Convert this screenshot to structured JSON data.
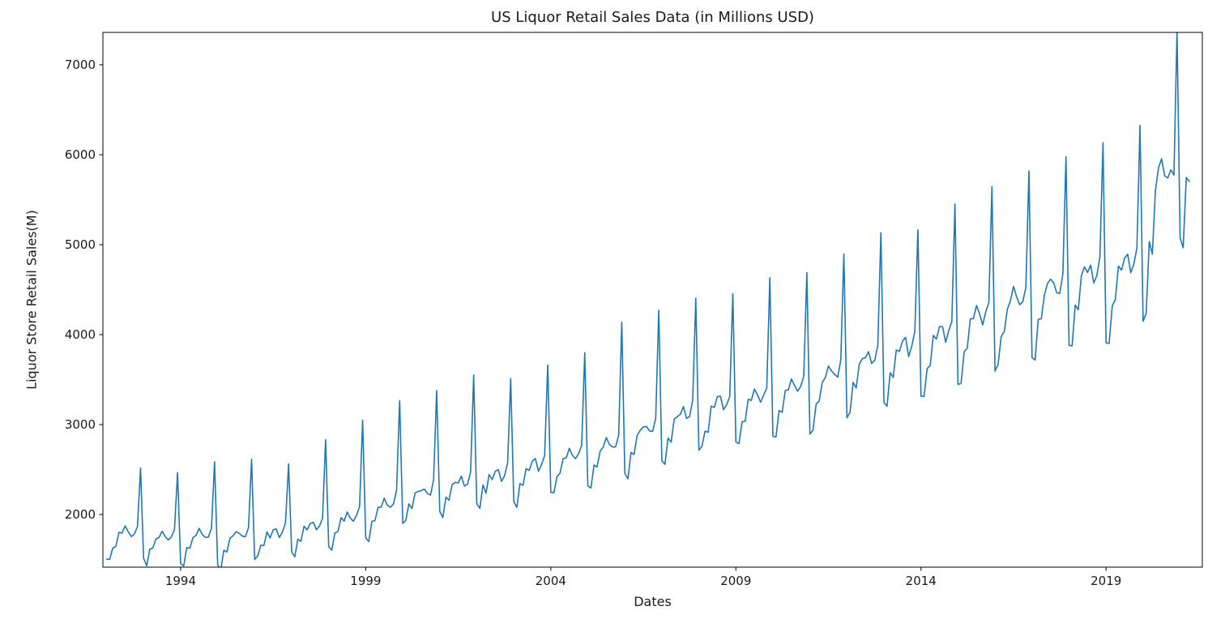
{
  "chart_data": {
    "type": "line",
    "title": "US Liquor Retail Sales Data (in Millions USD)",
    "xlabel": "Dates",
    "ylabel": "Liquor Store Retail Sales(M)",
    "line_color": "#1f77b4",
    "legend": "none",
    "grid": false,
    "x_start_year": 1992,
    "frequency": "monthly",
    "x_ticks": [
      1994,
      1999,
      2004,
      2009,
      2014,
      2019
    ],
    "y_ticks": [
      2000,
      3000,
      4000,
      5000,
      6000,
      7000
    ],
    "xlim_years": [
      1991.9,
      2021.6
    ],
    "ylim": [
      1415,
      7360
    ],
    "values": [
      1504,
      1501,
      1628,
      1644,
      1802,
      1792,
      1874,
      1810,
      1755,
      1783,
      1864,
      2517,
      1512,
      1431,
      1613,
      1629,
      1728,
      1745,
      1815,
      1755,
      1717,
      1751,
      1830,
      2466,
      1453,
      1429,
      1633,
      1625,
      1744,
      1769,
      1846,
      1779,
      1745,
      1750,
      1847,
      2588,
      1441,
      1382,
      1602,
      1584,
      1737,
      1764,
      1810,
      1790,
      1760,
      1753,
      1855,
      2615,
      1500,
      1541,
      1659,
      1657,
      1807,
      1739,
      1830,
      1840,
      1744,
      1806,
      1909,
      2564,
      1586,
      1530,
      1726,
      1702,
      1870,
      1830,
      1899,
      1914,
      1832,
      1871,
      1959,
      2833,
      1642,
      1603,
      1794,
      1812,
      1966,
      1926,
      2028,
      1961,
      1926,
      1989,
      2087,
      3050,
      1741,
      1700,
      1924,
      1933,
      2079,
      2082,
      2182,
      2104,
      2081,
      2118,
      2270,
      3268,
      1902,
      1935,
      2118,
      2067,
      2240,
      2257,
      2265,
      2283,
      2234,
      2216,
      2386,
      3378,
      2034,
      1968,
      2194,
      2159,
      2332,
      2357,
      2352,
      2426,
      2316,
      2337,
      2472,
      3552,
      2121,
      2068,
      2329,
      2237,
      2445,
      2389,
      2481,
      2499,
      2369,
      2430,
      2574,
      3511,
      2142,
      2080,
      2344,
      2325,
      2510,
      2490,
      2593,
      2623,
      2481,
      2556,
      2655,
      3662,
      2245,
      2243,
      2421,
      2460,
      2622,
      2629,
      2736,
      2659,
      2621,
      2675,
      2770,
      3799,
      2320,
      2294,
      2550,
      2529,
      2704,
      2750,
      2856,
      2778,
      2751,
      2752,
      2880,
      4137,
      2459,
      2397,
      2690,
      2668,
      2881,
      2937,
      2974,
      2979,
      2930,
      2924,
      3067,
      4271,
      2598,
      2558,
      2850,
      2805,
      3060,
      3088,
      3115,
      3199,
      3069,
      3089,
      3274,
      4406,
      2715,
      2759,
      2927,
      2914,
      3206,
      3190,
      3313,
      3314,
      3166,
      3222,
      3310,
      4456,
      2806,
      2789,
      3030,
      3037,
      3280,
      3270,
      3395,
      3331,
      3249,
      3327,
      3405,
      4633,
      2870,
      2861,
      3157,
      3136,
      3378,
      3386,
      3507,
      3437,
      3371,
      3424,
      3539,
      4690,
      2894,
      2937,
      3226,
      3263,
      3469,
      3523,
      3651,
      3596,
      3560,
      3527,
      3718,
      4897,
      3075,
      3136,
      3470,
      3407,
      3672,
      3734,
      3743,
      3810,
      3680,
      3714,
      3879,
      5134,
      3247,
      3204,
      3576,
      3525,
      3830,
      3813,
      3925,
      3971,
      3756,
      3871,
      4035,
      5164,
      3316,
      3313,
      3623,
      3657,
      3993,
      3950,
      4090,
      4088,
      3915,
      4046,
      4143,
      5453,
      3446,
      3459,
      3809,
      3850,
      4176,
      4179,
      4324,
      4230,
      4108,
      4256,
      4354,
      5646,
      3594,
      3670,
      3979,
      4034,
      4281,
      4377,
      4536,
      4420,
      4333,
      4367,
      4526,
      5819,
      3746,
      3717,
      4170,
      4176,
      4440,
      4567,
      4617,
      4576,
      4466,
      4459,
      4676,
      5977,
      3881,
      3875,
      4329,
      4276,
      4657,
      4753,
      4692,
      4773,
      4575,
      4655,
      4864,
      6134,
      3909,
      3903,
      4319,
      4390,
      4762,
      4717,
      4848,
      4895,
      4687,
      4785,
      4962,
      6326,
      4149,
      4234,
      5034,
      4894,
      5602,
      5855,
      5955,
      5766,
      5741,
      5832,
      5774,
      7385,
      5075,
      4966,
      5747,
      5703
    ]
  }
}
